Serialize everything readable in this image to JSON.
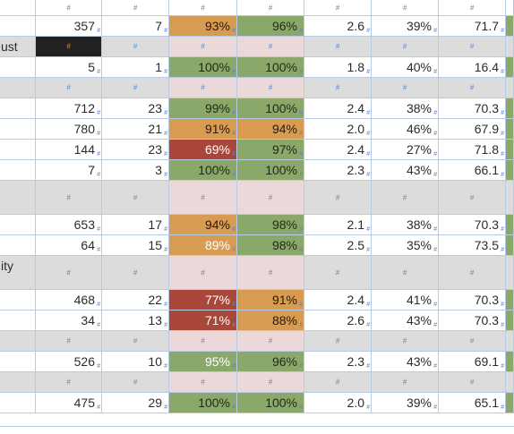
{
  "rows": [
    {
      "type": "blank",
      "cells": [
        "",
        "#",
        "#",
        "#",
        "#",
        "#",
        "#",
        "#"
      ]
    },
    {
      "type": "data",
      "label": "",
      "cells": [
        "357",
        "7",
        "93%",
        "96%",
        "2.6",
        "39%",
        "71.7"
      ],
      "colors": [
        "",
        "",
        "orange",
        "green",
        "",
        "",
        ""
      ]
    },
    {
      "type": "section",
      "label": "ust",
      "black": true
    },
    {
      "type": "data",
      "label": "",
      "cells": [
        "5",
        "1",
        "100%",
        "100%",
        "1.8",
        "40%",
        "16.4"
      ],
      "colors": [
        "",
        "",
        "green",
        "green",
        "",
        "",
        ""
      ]
    },
    {
      "type": "section",
      "label": "",
      "black": false
    },
    {
      "type": "data",
      "label": "",
      "cells": [
        "712",
        "23",
        "99%",
        "100%",
        "2.4",
        "38%",
        "70.3"
      ],
      "colors": [
        "",
        "",
        "green",
        "green",
        "",
        "",
        ""
      ]
    },
    {
      "type": "data",
      "label": "",
      "cells": [
        "780",
        "21",
        "91%",
        "94%",
        "2.0",
        "46%",
        "67.9"
      ],
      "colors": [
        "",
        "",
        "orange",
        "orange",
        "",
        "",
        ""
      ]
    },
    {
      "type": "data",
      "label": "",
      "cells": [
        "144",
        "23",
        "69%",
        "97%",
        "2.4",
        "27%",
        "71.8"
      ],
      "colors": [
        "",
        "",
        "red",
        "green",
        "",
        "",
        ""
      ]
    },
    {
      "type": "data",
      "label": "",
      "cells": [
        "7",
        "3",
        "100%",
        "100%",
        "2.3",
        "43%",
        "66.1"
      ],
      "colors": [
        "",
        "",
        "green",
        "green",
        "",
        "",
        ""
      ]
    },
    {
      "type": "tallsection",
      "label": ""
    },
    {
      "type": "data",
      "label": "",
      "cells": [
        "653",
        "17",
        "94%",
        "98%",
        "2.1",
        "38%",
        "70.3"
      ],
      "colors": [
        "",
        "",
        "orange",
        "green",
        "",
        "",
        ""
      ]
    },
    {
      "type": "data",
      "label": "",
      "cells": [
        "64",
        "15",
        "89%",
        "98%",
        "2.5",
        "35%",
        "73.5"
      ],
      "colors": [
        "",
        "",
        "orangew",
        "green",
        "",
        "",
        ""
      ]
    },
    {
      "type": "tallsection",
      "label": "ity"
    },
    {
      "type": "data",
      "label": "",
      "cells": [
        "468",
        "22",
        "77%",
        "91%",
        "2.4",
        "41%",
        "70.3"
      ],
      "colors": [
        "",
        "",
        "red",
        "orange",
        "",
        "",
        ""
      ]
    },
    {
      "type": "data",
      "label": "",
      "cells": [
        "34",
        "13",
        "71%",
        "88%",
        "2.6",
        "43%",
        "70.3"
      ],
      "colors": [
        "",
        "",
        "red",
        "orange",
        "",
        "",
        ""
      ]
    },
    {
      "type": "section",
      "label": "",
      "black": false
    },
    {
      "type": "data",
      "label": "",
      "cells": [
        "526",
        "10",
        "95%",
        "96%",
        "2.3",
        "43%",
        "69.1"
      ],
      "colors": [
        "",
        "",
        "greenw",
        "green",
        "",
        "",
        ""
      ]
    },
    {
      "type": "section",
      "label": "",
      "black": false
    },
    {
      "type": "data",
      "label": "",
      "cells": [
        "475",
        "29",
        "100%",
        "100%",
        "2.0",
        "39%",
        "65.1"
      ],
      "colors": [
        "",
        "",
        "green",
        "green",
        "",
        "",
        ""
      ]
    }
  ]
}
